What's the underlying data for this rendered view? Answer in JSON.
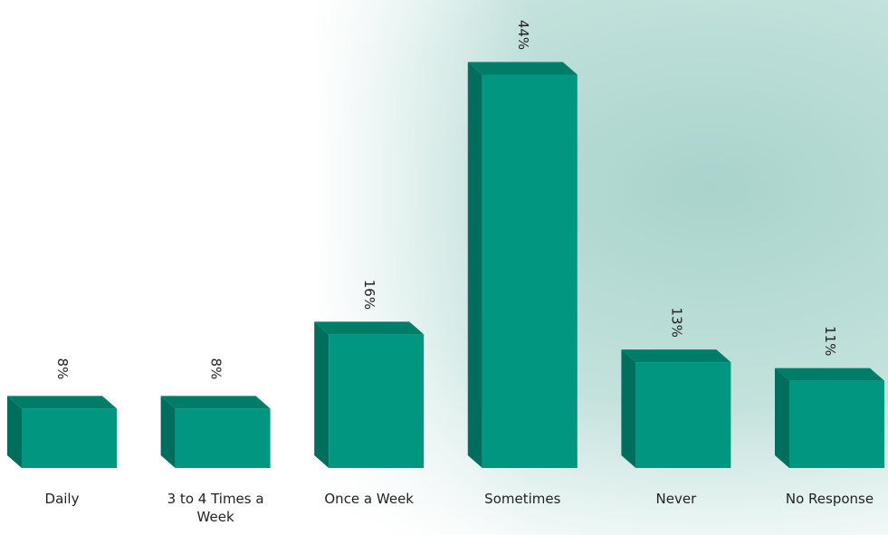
{
  "chart_data": {
    "type": "bar3d",
    "categories": [
      "Daily",
      "3 to 4 Times a Week",
      "Once a Week",
      "Sometimes",
      "Never",
      "No Response"
    ],
    "values": [
      8,
      8,
      16,
      44,
      13,
      11
    ],
    "value_labels": [
      "8%",
      "8%",
      "16%",
      "44%",
      "13%",
      "11%"
    ],
    "color": "#00967f",
    "ylim": [
      1.6,
      46
    ]
  }
}
